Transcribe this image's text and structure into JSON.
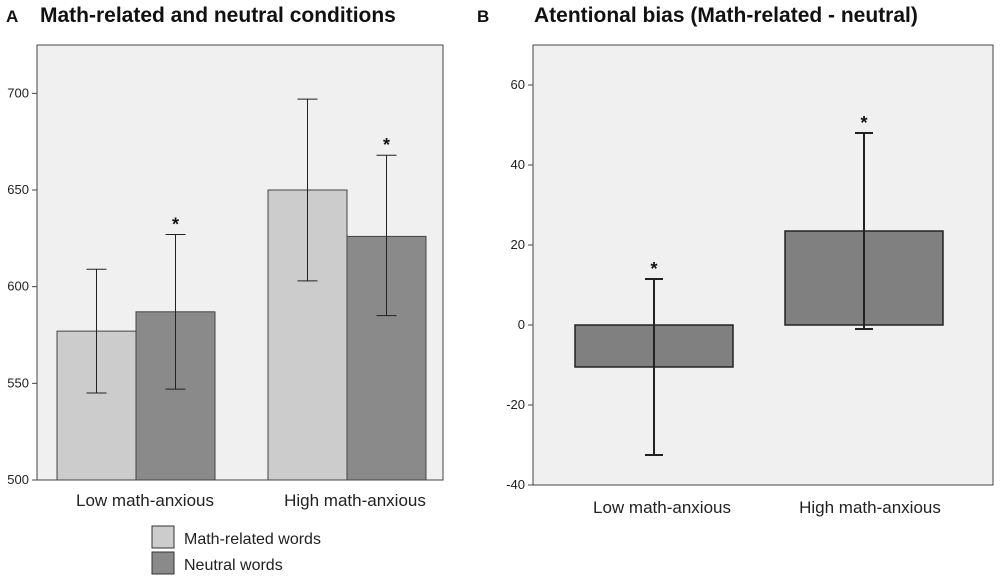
{
  "chart_data": [
    {
      "type": "bar",
      "panel": "A",
      "title": "Math-related and neutral conditions",
      "categories": [
        "Low math-anxious",
        "High math-anxious"
      ],
      "series": [
        {
          "name": "Math-related words",
          "color": "#cccccc",
          "values": [
            577,
            650
          ],
          "err_low": [
            545,
            603
          ],
          "err_high": [
            609,
            697
          ]
        },
        {
          "name": "Neutral words",
          "color": "#8a8a8a",
          "values": [
            587,
            626
          ],
          "err_low": [
            547,
            585
          ],
          "err_high": [
            627,
            668
          ]
        }
      ],
      "significance": [
        [
          "",
          "*"
        ],
        [
          "",
          "*"
        ]
      ],
      "ylim": [
        500,
        725
      ],
      "yticks": [
        500,
        550,
        600,
        650,
        700
      ],
      "ytick_labels": [
        "500",
        "550",
        "600",
        "650",
        "700"
      ],
      "xlabel": "",
      "ylabel": "",
      "legend": [
        "Math-related words",
        "Neutral words"
      ]
    },
    {
      "type": "bar",
      "panel": "B",
      "title": "Atentional bias (Math-related - neutral)",
      "categories": [
        "Low math-anxious",
        "High math-anxious"
      ],
      "series": [
        {
          "name": "Math-related - neutral",
          "color": "#808080",
          "values": [
            -10.5,
            23.5
          ],
          "err_low": [
            -32.5,
            -1
          ],
          "err_high": [
            11.5,
            48
          ]
        }
      ],
      "significance": [
        "*",
        "*"
      ],
      "ylim": [
        -40,
        70
      ],
      "yticks": [
        -40,
        -20,
        0,
        20,
        40,
        60
      ],
      "ytick_labels": [
        "-40",
        "-20",
        "0",
        "20",
        "40",
        "60"
      ],
      "xlabel": "",
      "ylabel": ""
    }
  ]
}
